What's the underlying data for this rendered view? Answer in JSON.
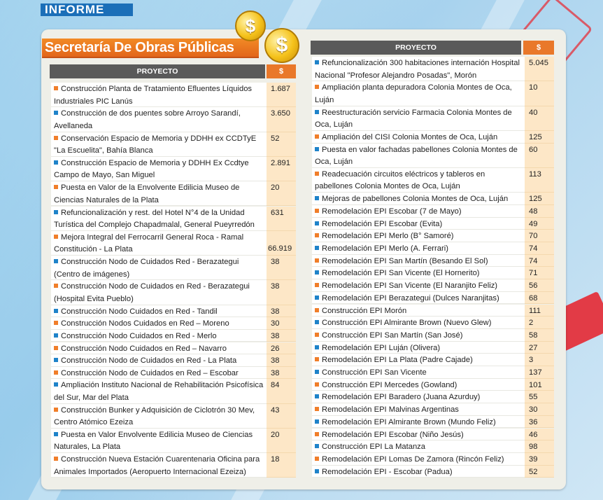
{
  "header": {
    "label": "INFORME"
  },
  "title": "Secretaría De Obras Públicas",
  "coin_symbol": "$",
  "colors": {
    "blue": "#1f83c9",
    "orange": "#f07e2a"
  },
  "left_table": {
    "col_project": "PROYECTO",
    "col_amount": "$",
    "rows": [
      {
        "name": "Construcción Planta de Tratamiento Efluentes Líquidos Industriales PIC Lanús",
        "amount": "1.687",
        "color": "orange",
        "lines": 2
      },
      {
        "name": "Construcción de dos puentes sobre Arroyo Sarandí, Avellaneda",
        "amount": "3.650",
        "color": "blue",
        "lines": 2
      },
      {
        "name": "Conservación Espacio de Memoria y DDHH ex CCDTyE \"La Escuelita\", Bahía Blanca",
        "amount": "52",
        "color": "orange",
        "lines": 2
      },
      {
        "name": "Construcción Espacio de Memoria y DDHH Ex Ccdtye Campo de Mayo, San Miguel",
        "amount": "2.891",
        "color": "blue",
        "lines": 2
      },
      {
        "name": "Puesta en Valor de la Envolvente Edilicia Museo de Ciencias Naturales de la Plata",
        "amount": "20",
        "color": "orange",
        "lines": 2
      },
      {
        "name": "Refuncionalización y rest. del Hotel N°4 de la Unidad Turística del Complejo Chapadmalal, General Pueyrredón",
        "amount": "631",
        "color": "blue",
        "lines": 2
      },
      {
        "name": "Mejora Integral del Ferrocarril General Roca - Ramal Constitución - La Plata",
        "amount": "66.919",
        "color": "orange",
        "lines": 2,
        "amount_bottom": true
      },
      {
        "name": "Construcción Nodo de Cuidados Red - Berazategui (Centro de imágenes)",
        "amount": "38",
        "color": "blue",
        "lines": 2
      },
      {
        "name": "Construcción Nodo de Cuidados en Red - Berazategui (Hospital Evita Pueblo)",
        "amount": "38",
        "color": "orange",
        "lines": 2
      },
      {
        "name": "Construcción Nodo Cuidados en Red - Tandil",
        "amount": "38",
        "color": "blue",
        "lines": 1
      },
      {
        "name": "Construcción Nodos Cuidados en Red – Moreno",
        "amount": "30",
        "color": "orange",
        "lines": 1
      },
      {
        "name": "Construcción Nodo Cuidados en Red - Merlo",
        "amount": "38",
        "color": "blue",
        "lines": 1
      },
      {
        "name": "Construcción Nodo Cuidados en Red – Navarro",
        "amount": "26",
        "color": "orange",
        "lines": 1
      },
      {
        "name": "Construcción Nodo de Cuidados en Red - La Plata",
        "amount": "38",
        "color": "blue",
        "lines": 1
      },
      {
        "name": "Construcción Nodo de Cuidados en Red – Escobar",
        "amount": "38",
        "color": "orange",
        "lines": 1
      },
      {
        "name": "Ampliación Instituto Nacional de Rehabilitación Psicofísica del Sur, Mar del Plata",
        "amount": "84",
        "color": "blue",
        "lines": 2
      },
      {
        "name": "Construcción Bunker y Adquisición de Ciclotrón 30 Mev, Centro Atómico Ezeiza",
        "amount": "43",
        "color": "orange",
        "lines": 2
      },
      {
        "name": "Puesta en Valor Envolvente Edilicia Museo de Ciencias Naturales, La Plata",
        "amount": "20",
        "color": "blue",
        "lines": 2
      },
      {
        "name": "Construcción Nueva Estación Cuarentenaria Oficina para Animales Importados (Aeropuerto Internacional Ezeiza)",
        "amount": "18",
        "color": "orange",
        "lines": 2
      }
    ]
  },
  "right_table": {
    "col_project": "PROYECTO",
    "col_amount": "$",
    "rows": [
      {
        "name": "Refuncionalización 300 habitaciones internación Hospital Nacional \"Profesor Alejandro Posadas\", Morón",
        "amount": "5.045",
        "color": "blue",
        "lines": 2
      },
      {
        "name": "Ampliación planta depuradora Colonia Montes de Oca, Luján",
        "amount": "10",
        "color": "orange",
        "lines": 2
      },
      {
        "name": "Reestructuración servicio Farmacia Colonia Montes de Oca, Luján",
        "amount": "40",
        "color": "blue",
        "lines": 2
      },
      {
        "name": "Ampliación del CISI Colonia Montes de Oca, Luján",
        "amount": "125",
        "color": "orange",
        "lines": 1
      },
      {
        "name": "Puesta en valor fachadas pabellones Colonia Montes de Oca, Luján",
        "amount": "60",
        "color": "blue",
        "lines": 2
      },
      {
        "name": "Readecuación circuitos eléctricos y tableros en pabellones Colonia Montes de Oca, Luján",
        "amount": "113",
        "color": "orange",
        "lines": 2
      },
      {
        "name": "Mejoras de pabellones Colonia Montes de Oca, Luján",
        "amount": "125",
        "color": "blue",
        "lines": 1
      },
      {
        "name": "Remodelación EPI Escobar (7 de Mayo)",
        "amount": "48",
        "color": "orange",
        "lines": 1
      },
      {
        "name": "Remodelación EPI Escobar (Evita)",
        "amount": "49",
        "color": "blue",
        "lines": 1
      },
      {
        "name": "Remodelación EPI Merlo (B° Samoré)",
        "amount": "70",
        "color": "orange",
        "lines": 1
      },
      {
        "name": "Remodelación EPI Merlo (A. Ferrari)",
        "amount": "74",
        "color": "blue",
        "lines": 1
      },
      {
        "name": "Remodelación EPI San Martín (Besando El Sol)",
        "amount": "74",
        "color": "orange",
        "lines": 1
      },
      {
        "name": "Remodelación EPI San Vicente (El Hornerito)",
        "amount": "71",
        "color": "blue",
        "lines": 1
      },
      {
        "name": "Remodelación EPI San Vicente (El Naranjito Feliz)",
        "amount": "56",
        "color": "orange",
        "lines": 1
      },
      {
        "name": "Remodelación EPI Berazategui (Dulces Naranjitas)",
        "amount": "68",
        "color": "blue",
        "lines": 1
      },
      {
        "name": "Construcción EPI Morón",
        "amount": "111",
        "color": "orange",
        "lines": 1
      },
      {
        "name": "Construcción EPI Almirante Brown (Nuevo Glew)",
        "amount": "2",
        "color": "blue",
        "lines": 1
      },
      {
        "name": "Construcción EPI San Martín (San José)",
        "amount": "58",
        "color": "orange",
        "lines": 1
      },
      {
        "name": "Remodelación EPI Luján (Olivera)",
        "amount": "27",
        "color": "blue",
        "lines": 1
      },
      {
        "name": "Remodelación EPI La Plata (Padre Cajade)",
        "amount": "3",
        "color": "orange",
        "lines": 1
      },
      {
        "name": "Construcción EPI San Vicente",
        "amount": "137",
        "color": "blue",
        "lines": 1
      },
      {
        "name": "Construcción EPI Mercedes (Gowland)",
        "amount": "101",
        "color": "orange",
        "lines": 1
      },
      {
        "name": "Remodelación EPI Baradero (Juana Azurduy)",
        "amount": "55",
        "color": "blue",
        "lines": 1
      },
      {
        "name": "Remodelación EPI Malvinas Argentinas",
        "amount": "30",
        "color": "orange",
        "lines": 1
      },
      {
        "name": "Remodelación EPI Almirante Brown (Mundo Feliz)",
        "amount": "36",
        "color": "blue",
        "lines": 1
      },
      {
        "name": "Remodelación EPI Escobar (Niño Jesús)",
        "amount": "46",
        "color": "orange",
        "lines": 1
      },
      {
        "name": "Construcción EPI La Matanza",
        "amount": "98",
        "color": "blue",
        "lines": 1
      },
      {
        "name": "Remodelación EPI Lomas De Zamora (Rincón Feliz)",
        "amount": "39",
        "color": "orange",
        "lines": 1
      },
      {
        "name": "Remodelación EPI - Escobar (Padua)",
        "amount": "52",
        "color": "blue",
        "lines": 1
      }
    ]
  }
}
